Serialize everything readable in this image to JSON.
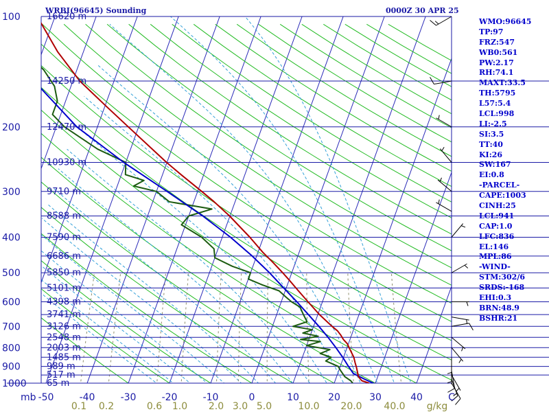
{
  "header": {
    "station": "WRBI(96645) Sounding",
    "time": "0000Z 30 APR 25"
  },
  "indices": [
    "WMO:96645",
    "TP:97",
    "FRZ:547",
    "WB0:561",
    "PW:2.17",
    "RH:74.1",
    "MAXT:33.5",
    "TH:5795",
    "L57:5.4",
    "LCL:998",
    "LI:-2.5",
    "SI:3.5",
    "TT:40",
    "KI:26",
    "SW:167",
    "EI:0.8",
    "-PARCEL-",
    "CAPE:1003",
    "CINH:25",
    "LCL:941",
    "CAP:1.0",
    "LFC:836",
    "EL:146",
    "MPL:86",
    "-WIND-",
    "STM:302/6",
    "SRDS:-168",
    "EHI:0.3",
    "BRN:48.9",
    "BSHR:21"
  ],
  "colors": {
    "isobar": "#1a1aa6",
    "isotherm": "#2a2ab8",
    "dry_adiabat": "#22bb22",
    "moist_adiabat": "#33a0d8",
    "mixing_ratio": "#8c8c6a",
    "temperature": "#b00000",
    "dewpoint": "#1c5c10",
    "parcel": "#0000cc",
    "wind_barb": "#000000",
    "text": "#1a1aa6",
    "mixing_label": "#8c8c3c"
  },
  "chart_data": {
    "type": "skew-t",
    "pressure_axis_unit": "mb",
    "temperature_axis_unit": "C",
    "mixing_ratio_unit": "g/kg",
    "pressure_ticks": [
      "100",
      "200",
      "300",
      "400",
      "500",
      "600",
      "700",
      "800",
      "900",
      "1000"
    ],
    "temperature_ticks": [
      "-50",
      "-40",
      "-30",
      "-20",
      "-10",
      "0",
      "10",
      "20",
      "30",
      "40"
    ],
    "mixing_ratio_ticks": [
      "0.1",
      "0.2",
      "0.6",
      "1.0",
      "2.0",
      "3.0",
      "5.0",
      "10.0",
      "20.0",
      "40.0"
    ],
    "height_labels": [
      {
        "p": 100,
        "text": "16620 m"
      },
      {
        "p": 150,
        "text": "14250 m"
      },
      {
        "p": 200,
        "text": "12470 m"
      },
      {
        "p": 250,
        "text": "10930 m"
      },
      {
        "p": 300,
        "text": "9710 m"
      },
      {
        "p": 350,
        "text": "8588 m"
      },
      {
        "p": 400,
        "text": "7590 m"
      },
      {
        "p": 450,
        "text": "6686 m"
      },
      {
        "p": 500,
        "text": "5850 m"
      },
      {
        "p": 550,
        "text": "5101 m"
      },
      {
        "p": 600,
        "text": "4398 m"
      },
      {
        "p": 650,
        "text": "3741 m"
      },
      {
        "p": 700,
        "text": "3126 m"
      },
      {
        "p": 750,
        "text": "2548 m"
      },
      {
        "p": 800,
        "text": "2003 m"
      },
      {
        "p": 850,
        "text": "1485 m"
      },
      {
        "p": 900,
        "text": "989 m"
      },
      {
        "p": 950,
        "text": "517 m"
      },
      {
        "p": 1000,
        "text": "65 m"
      }
    ],
    "temperature": [
      {
        "p": 1000,
        "t": 28.5
      },
      {
        "p": 985,
        "t": 26.5
      },
      {
        "p": 960,
        "t": 25.3
      },
      {
        "p": 925,
        "t": 24.5
      },
      {
        "p": 905,
        "t": 24.0
      },
      {
        "p": 880,
        "t": 23.3
      },
      {
        "p": 850,
        "t": 22.5
      },
      {
        "p": 800,
        "t": 20.5
      },
      {
        "p": 780,
        "t": 19.7
      },
      {
        "p": 760,
        "t": 18.4
      },
      {
        "p": 740,
        "t": 17.4
      },
      {
        "p": 720,
        "t": 16.2
      },
      {
        "p": 700,
        "t": 14.5
      },
      {
        "p": 650,
        "t": 10.4
      },
      {
        "p": 600,
        "t": 6.5
      },
      {
        "p": 560,
        "t": 3.2
      },
      {
        "p": 520,
        "t": -0.3
      },
      {
        "p": 500,
        "t": -2.2
      },
      {
        "p": 470,
        "t": -5.3
      },
      {
        "p": 440,
        "t": -8.8
      },
      {
        "p": 400,
        "t": -13.3
      },
      {
        "p": 350,
        "t": -20.1
      },
      {
        "p": 320,
        "t": -25.1
      },
      {
        "p": 300,
        "t": -29.0
      },
      {
        "p": 270,
        "t": -35.5
      },
      {
        "p": 250,
        "t": -40.1
      },
      {
        "p": 200,
        "t": -52.5
      },
      {
        "p": 175,
        "t": -59.9
      },
      {
        "p": 150,
        "t": -68.3
      },
      {
        "p": 125,
        "t": -76.2
      },
      {
        "p": 100,
        "t": -84.3
      }
    ],
    "dewpoint": [
      {
        "p": 1000,
        "td": 24.5
      },
      {
        "p": 985,
        "td": 23.8
      },
      {
        "p": 960,
        "td": 22.0
      },
      {
        "p": 925,
        "td": 20.5
      },
      {
        "p": 900,
        "td": 19.5
      },
      {
        "p": 870,
        "td": 16.0
      },
      {
        "p": 850,
        "td": 17.0
      },
      {
        "p": 830,
        "td": 14.0
      },
      {
        "p": 810,
        "td": 16.0
      },
      {
        "p": 790,
        "td": 10.0
      },
      {
        "p": 770,
        "td": 13.0
      },
      {
        "p": 760,
        "td": 8.0
      },
      {
        "p": 745,
        "td": 12.0
      },
      {
        "p": 730,
        "td": 8.0
      },
      {
        "p": 715,
        "td": 10.0
      },
      {
        "p": 700,
        "td": 5.0
      },
      {
        "p": 680,
        "td": 8.0
      },
      {
        "p": 650,
        "td": 6.5
      },
      {
        "p": 620,
        "td": 5.0
      },
      {
        "p": 600,
        "td": 2.5
      },
      {
        "p": 580,
        "td": 0.5
      },
      {
        "p": 560,
        "td": -1.5
      },
      {
        "p": 540,
        "td": -6.0
      },
      {
        "p": 520,
        "td": -10.0
      },
      {
        "p": 500,
        "td": -10.0
      },
      {
        "p": 480,
        "td": -15.0
      },
      {
        "p": 455,
        "td": -20.0
      },
      {
        "p": 430,
        "td": -21.0
      },
      {
        "p": 400,
        "td": -25.0
      },
      {
        "p": 370,
        "td": -31.0
      },
      {
        "p": 350,
        "td": -30.0
      },
      {
        "p": 335,
        "td": -25.0
      },
      {
        "p": 320,
        "td": -36.0
      },
      {
        "p": 300,
        "td": -40.0
      },
      {
        "p": 290,
        "td": -46.0
      },
      {
        "p": 280,
        "td": -44.0
      },
      {
        "p": 270,
        "td": -49.0
      },
      {
        "p": 250,
        "td": -50.0
      },
      {
        "p": 230,
        "td": -58.0
      },
      {
        "p": 200,
        "td": -68.0
      },
      {
        "p": 185,
        "td": -72.0
      },
      {
        "p": 170,
        "td": -72.0
      },
      {
        "p": 155,
        "td": -74.0
      },
      {
        "p": 140,
        "td": -78.0
      },
      {
        "p": 125,
        "td": -84.0
      },
      {
        "p": 110,
        "td": -90.0
      },
      {
        "p": 100,
        "td": -94.5
      }
    ],
    "parcel": [
      {
        "p": 1000,
        "t": 29.5
      },
      {
        "p": 975,
        "t": 27.0
      },
      {
        "p": 941,
        "t": 23.8
      },
      {
        "p": 900,
        "t": 22.0
      },
      {
        "p": 850,
        "t": 19.8
      },
      {
        "p": 800,
        "t": 17.3
      },
      {
        "p": 750,
        "t": 14.5
      },
      {
        "p": 700,
        "t": 11.3
      },
      {
        "p": 650,
        "t": 7.7
      },
      {
        "p": 600,
        "t": 3.8
      },
      {
        "p": 550,
        "t": -0.6
      },
      {
        "p": 500,
        "t": -5.4
      },
      {
        "p": 450,
        "t": -11.1
      },
      {
        "p": 400,
        "t": -18.0
      },
      {
        "p": 350,
        "t": -26.6
      },
      {
        "p": 300,
        "t": -37.4
      },
      {
        "p": 250,
        "t": -50.5
      },
      {
        "p": 200,
        "t": -65.0
      },
      {
        "p": 150,
        "t": -79.4
      },
      {
        "p": 100,
        "t": -94.5
      }
    ],
    "winds": [
      {
        "p": 1000,
        "dir": 150,
        "spd": 10
      },
      {
        "p": 975,
        "dir": 160,
        "spd": 15
      },
      {
        "p": 950,
        "dir": 150,
        "spd": 5
      },
      {
        "p": 925,
        "dir": 170,
        "spd": 10
      },
      {
        "p": 900,
        "dir": 180,
        "spd": 5
      },
      {
        "p": 850,
        "dir": 180,
        "spd": 5
      },
      {
        "p": 800,
        "dir": 140,
        "spd": 5
      },
      {
        "p": 750,
        "dir": 130,
        "spd": 5
      },
      {
        "p": 700,
        "dir": 80,
        "spd": 10
      },
      {
        "p": 660,
        "dir": 100,
        "spd": 5
      },
      {
        "p": 600,
        "dir": 90,
        "spd": 5
      },
      {
        "p": 500,
        "dir": 60,
        "spd": 5
      },
      {
        "p": 400,
        "dir": 40,
        "spd": 5
      },
      {
        "p": 340,
        "dir": 300,
        "spd": 5
      },
      {
        "p": 300,
        "dir": 310,
        "spd": 5
      },
      {
        "p": 250,
        "dir": 320,
        "spd": 5
      },
      {
        "p": 200,
        "dir": 300,
        "spd": 5
      },
      {
        "p": 150,
        "dir": 260,
        "spd": 10
      },
      {
        "p": 100,
        "dir": 240,
        "spd": 15
      }
    ]
  }
}
